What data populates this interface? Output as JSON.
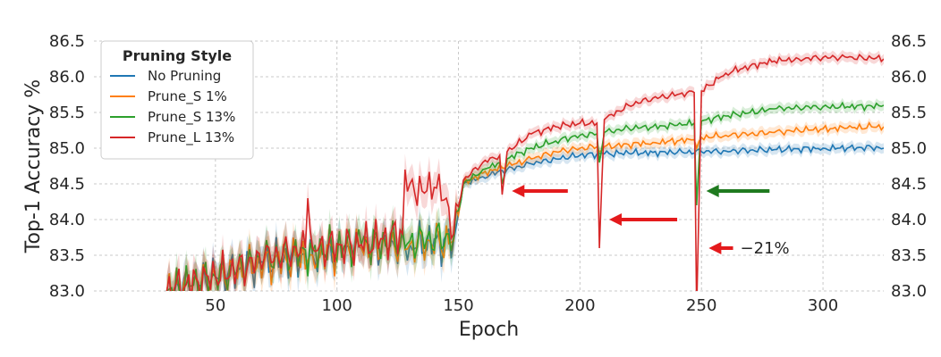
{
  "chart_data": {
    "type": "line",
    "xlabel": "Epoch",
    "ylabel": "Top-1 Accuracy %",
    "xlim": [
      0,
      325
    ],
    "ylim": [
      83.0,
      86.5
    ],
    "xticks": [
      50,
      100,
      150,
      200,
      250,
      300
    ],
    "yticks": [
      83.0,
      83.5,
      84.0,
      84.5,
      85.0,
      85.5,
      86.0,
      86.5
    ],
    "ytick_labels": [
      "83.0",
      "83.5",
      "84.0",
      "84.5",
      "85.0",
      "85.5",
      "86.0",
      "86.5"
    ],
    "secondary_y_axis": true,
    "grid": true,
    "legend": {
      "title": "Pruning Style",
      "placement": "top-left",
      "entries": [
        "No Pruning",
        "Prune_S 1%",
        "Prune_S 13%",
        "Prune_L 13%"
      ]
    },
    "series": [
      {
        "name": "No Pruning",
        "color": "#1f77b4",
        "x": [
          30,
          50,
          70,
          90,
          110,
          130,
          148,
          152,
          160,
          170,
          180,
          190,
          200,
          210,
          220,
          230,
          240,
          250,
          260,
          270,
          280,
          290,
          300,
          310,
          320,
          325
        ],
        "y": [
          83.0,
          83.2,
          83.4,
          83.5,
          83.6,
          83.65,
          83.7,
          84.5,
          84.6,
          84.7,
          84.78,
          84.85,
          84.9,
          84.92,
          84.93,
          84.94,
          84.94,
          84.95,
          84.96,
          84.97,
          84.98,
          84.99,
          85.0,
          85.0,
          85.01,
          85.0
        ]
      },
      {
        "name": "Prune_S 1%",
        "color": "#ff7f0e",
        "x": [
          30,
          50,
          70,
          90,
          110,
          130,
          148,
          152,
          160,
          170,
          180,
          190,
          200,
          207,
          208,
          210,
          220,
          230,
          240,
          247,
          248,
          250,
          260,
          270,
          280,
          290,
          300,
          310,
          320,
          325
        ],
        "y": [
          83.0,
          83.2,
          83.4,
          83.5,
          83.6,
          83.65,
          83.7,
          84.5,
          84.65,
          84.75,
          84.85,
          84.95,
          85.0,
          85.02,
          84.95,
          85.02,
          85.05,
          85.08,
          85.1,
          85.12,
          85.0,
          85.15,
          85.18,
          85.2,
          85.22,
          85.25,
          85.27,
          85.28,
          85.3,
          85.3
        ]
      },
      {
        "name": "Prune_S 13%",
        "color": "#2ca02c",
        "x": [
          30,
          50,
          70,
          90,
          110,
          130,
          148,
          152,
          160,
          167,
          168,
          170,
          180,
          190,
          200,
          207,
          208,
          210,
          220,
          230,
          240,
          247,
          248,
          250,
          260,
          270,
          280,
          290,
          300,
          310,
          320,
          325
        ],
        "y": [
          83.0,
          83.2,
          83.45,
          83.55,
          83.65,
          83.7,
          83.75,
          84.5,
          84.7,
          84.8,
          84.5,
          84.85,
          85.0,
          85.1,
          85.18,
          85.2,
          84.8,
          85.22,
          85.28,
          85.3,
          85.32,
          85.35,
          84.2,
          85.38,
          85.45,
          85.5,
          85.55,
          85.57,
          85.58,
          85.58,
          85.59,
          85.6
        ]
      },
      {
        "name": "Prune_L 13%",
        "color": "#d62728",
        "x": [
          30,
          50,
          70,
          87,
          88,
          90,
          110,
          127,
          128,
          130,
          135,
          140,
          145,
          148,
          152,
          160,
          167,
          168,
          170,
          180,
          190,
          200,
          207,
          208,
          210,
          220,
          230,
          240,
          247,
          248,
          250,
          260,
          270,
          280,
          290,
          300,
          310,
          320,
          325
        ],
        "y": [
          83.0,
          83.2,
          83.45,
          83.6,
          84.3,
          83.6,
          83.65,
          83.8,
          84.7,
          84.5,
          84.4,
          84.45,
          84.3,
          83.8,
          84.55,
          84.8,
          84.9,
          84.35,
          84.95,
          85.2,
          85.3,
          85.35,
          85.35,
          83.6,
          85.4,
          85.6,
          85.7,
          85.75,
          85.78,
          82.7,
          85.8,
          86.05,
          86.15,
          86.22,
          86.25,
          86.27,
          86.27,
          86.26,
          86.25
        ]
      }
    ],
    "annotations": [
      {
        "type": "arrow",
        "color": "red",
        "x_start": 195,
        "x_end": 172,
        "y": 84.4
      },
      {
        "type": "arrow",
        "color": "red",
        "x_start": 240,
        "x_end": 212,
        "y": 84.0
      },
      {
        "type": "arrow",
        "color": "green",
        "x_start": 278,
        "x_end": 252,
        "y": 84.4
      },
      {
        "type": "arrow",
        "color": "red",
        "x_start": 263,
        "x_end": 253,
        "y": 83.6,
        "text": "−21%"
      }
    ]
  }
}
